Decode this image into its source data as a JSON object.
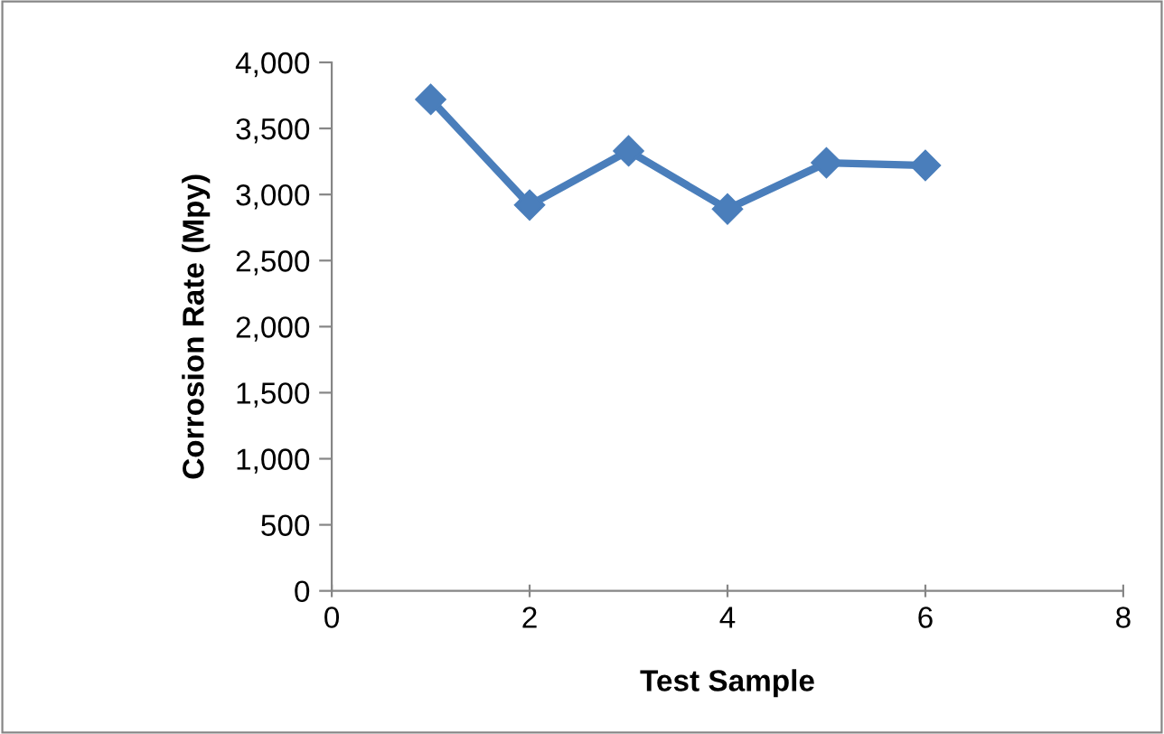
{
  "chart_data": {
    "type": "line",
    "xlabel": "Test Sample",
    "ylabel": "Corrosion Rate (Mpy)",
    "x": [
      1,
      2,
      3,
      4,
      5,
      6
    ],
    "series": [
      {
        "color": "#4a7ebb",
        "values": [
          3720,
          2920,
          3330,
          2890,
          3240,
          3220
        ]
      }
    ],
    "xlim": [
      0,
      8
    ],
    "xticks": [
      0,
      2,
      4,
      6,
      8
    ],
    "ylim": [
      0,
      4000
    ],
    "yticks": [
      {
        "value": 0,
        "label": "0"
      },
      {
        "value": 500,
        "label": "500"
      },
      {
        "value": 1000,
        "label": "1,000"
      },
      {
        "value": 1500,
        "label": "1,500"
      },
      {
        "value": 2000,
        "label": "2,000"
      },
      {
        "value": 2500,
        "label": "2,500"
      },
      {
        "value": 3000,
        "label": "3,000"
      },
      {
        "value": 3500,
        "label": "3,500"
      },
      {
        "value": 4000,
        "label": "4,000"
      }
    ],
    "marker": "diamond",
    "line_style": "solid",
    "grid": false,
    "legend": false
  }
}
